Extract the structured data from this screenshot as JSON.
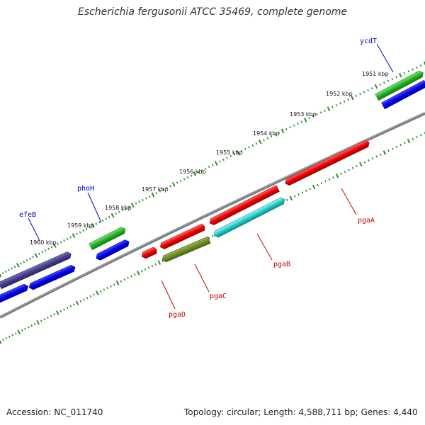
{
  "title": "Escherichia fergusonii ATCC 35469, complete genome",
  "accession": "Accession: NC_011740",
  "topology": "Topology: circular; Length: 4,588,711 bp; Genes: 4,440",
  "colors": {
    "backbone": "#888888",
    "ticks": "#2e8b2e",
    "label_blue": "#0000cc",
    "label_red": "#cc0000"
  },
  "tick_labels": [
    {
      "text": "1951 kbp"
    },
    {
      "text": "1952 kbp"
    },
    {
      "text": "1953 kbp"
    },
    {
      "text": "1954 kbp"
    },
    {
      "text": "1955 kbp"
    },
    {
      "text": "1956 kbp"
    },
    {
      "text": "1957 kbp"
    },
    {
      "text": "1958 kbp"
    },
    {
      "text": "1959 kbp"
    },
    {
      "text": "1960 kbp"
    }
  ],
  "gene_labels": [
    {
      "name": "ycdT",
      "color": "blue"
    },
    {
      "name": "phoH",
      "color": "blue"
    },
    {
      "name": "efeB",
      "color": "blue"
    },
    {
      "name": "pgaA",
      "color": "red"
    },
    {
      "name": "pgaB",
      "color": "red"
    },
    {
      "name": "pgaC",
      "color": "red"
    },
    {
      "name": "pgaD",
      "color": "red"
    }
  ]
}
